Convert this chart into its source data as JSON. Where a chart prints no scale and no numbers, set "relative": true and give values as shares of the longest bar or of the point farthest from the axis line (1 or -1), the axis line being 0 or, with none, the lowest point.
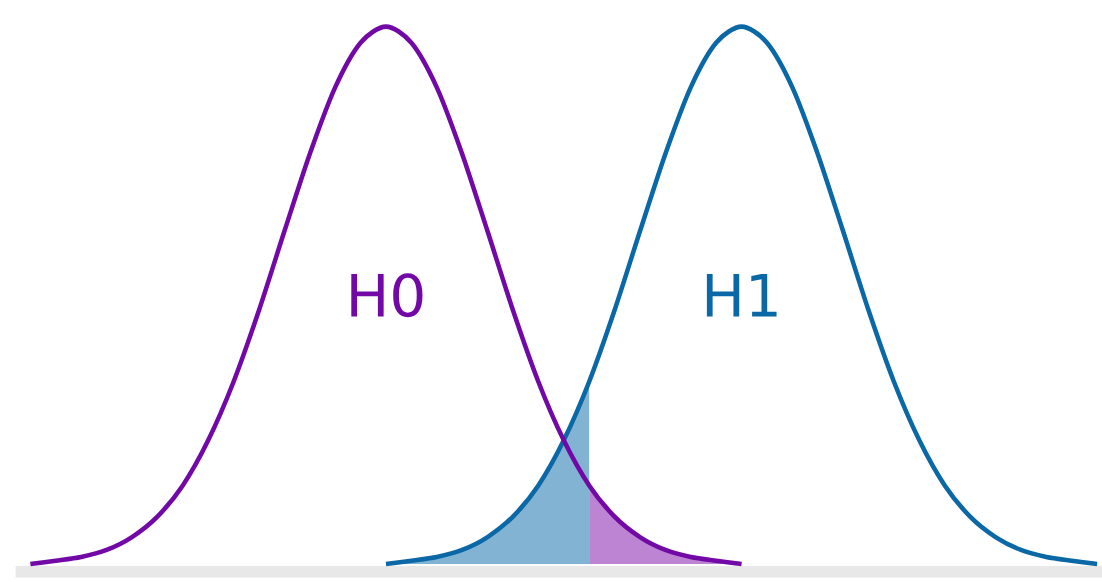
{
  "chart_data": {
    "type": "line",
    "relative": true,
    "categories": [
      null,
      null,
      null,
      null,
      null,
      null,
      null,
      null,
      null,
      null,
      null,
      null,
      null,
      null,
      null,
      null,
      null,
      null,
      null,
      null,
      null,
      null,
      null,
      null,
      null,
      null,
      null,
      null,
      null,
      null,
      null,
      null,
      null,
      null,
      null,
      null,
      null,
      null,
      null,
      null,
      null,
      null,
      null
    ],
    "series": [
      {
        "type": "area",
        "color": "#83b3d3",
        "values": [
          null,
          null,
          null,
          null,
          null,
          null,
          null,
          null,
          null,
          null,
          null,
          null,
          null,
          null,
          0,
          0.006,
          0.013,
          0.026,
          0.05,
          0.088,
          0.146,
          0.23,
          0.339,
          null,
          null,
          null,
          null,
          null,
          null,
          null,
          null,
          null,
          null,
          null,
          null,
          null,
          null,
          null,
          null,
          null,
          null,
          null,
          null
        ]
      },
      {
        "type": "area",
        "color": "#bc84d3",
        "values": [
          null,
          null,
          null,
          null,
          null,
          null,
          null,
          null,
          null,
          null,
          null,
          null,
          null,
          null,
          null,
          null,
          null,
          null,
          null,
          null,
          null,
          null,
          0.146,
          0.088,
          0.05,
          0.026,
          0.013,
          0.006,
          0,
          null,
          null,
          null,
          null,
          null,
          null,
          null,
          null,
          null,
          null,
          null,
          null,
          null,
          null
        ]
      },
      {
        "name": "H1",
        "color": "#0b68a6",
        "values": [
          null,
          null,
          null,
          null,
          null,
          null,
          null,
          null,
          null,
          null,
          null,
          null,
          null,
          null,
          0,
          0.006,
          0.013,
          0.026,
          0.05,
          0.088,
          0.146,
          0.23,
          0.339,
          0.472,
          0.619,
          0.763,
          0.887,
          0.97,
          1,
          0.97,
          0.887,
          0.763,
          0.619,
          0.472,
          0.339,
          0.23,
          0.146,
          0.088,
          0.05,
          0.026,
          0.013,
          0.006,
          0
        ]
      },
      {
        "name": "H0",
        "color": "#7209a6",
        "values": [
          0,
          0.006,
          0.013,
          0.026,
          0.05,
          0.088,
          0.146,
          0.23,
          0.339,
          0.472,
          0.619,
          0.763,
          0.887,
          0.97,
          1,
          0.97,
          0.887,
          0.763,
          0.619,
          0.472,
          0.339,
          0.23,
          0.146,
          0.088,
          0.05,
          0.026,
          0.013,
          0.006,
          0,
          null,
          null,
          null,
          null,
          null,
          null,
          null,
          null,
          null,
          null,
          null,
          null,
          null,
          null
        ]
      }
    ]
  }
}
